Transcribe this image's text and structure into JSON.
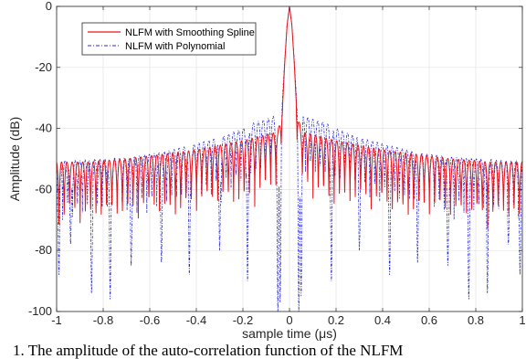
{
  "caption": "1.   The amplitude of the auto-correlation function of the NLFM",
  "chart_data": {
    "type": "line",
    "xlabel": "sample time (μs)",
    "ylabel": "Amplitude (dB)",
    "xlim": [
      -1,
      1
    ],
    "ylim": [
      -100,
      0
    ],
    "xticks": [
      -1,
      -0.8,
      -0.6,
      -0.4,
      -0.2,
      0,
      0.2,
      0.4,
      0.6,
      0.8,
      1
    ],
    "xtick_labels": [
      "-1",
      "-0.8",
      "-0.6",
      "-0.4",
      "-0.2",
      "0",
      "0.2",
      "0.4",
      "0.6",
      "0.8",
      "1"
    ],
    "yticks": [
      0,
      -20,
      -40,
      -60,
      -80,
      -100
    ],
    "ytick_labels": [
      "0",
      "-20",
      "-40",
      "-60",
      "-80",
      "-100"
    ],
    "grid": true,
    "legend_position": "top-left",
    "series": [
      {
        "name": "NLFM with Smoothing Spline",
        "color": "#e8141a",
        "style": "solid",
        "x": [
          -1.0,
          -0.95,
          -0.9,
          -0.85,
          -0.8,
          -0.7,
          -0.6,
          -0.5,
          -0.4,
          -0.3,
          -0.2,
          -0.15,
          -0.1,
          -0.07,
          -0.05,
          -0.03,
          -0.02,
          -0.01,
          0,
          0.01,
          0.02,
          0.03,
          0.05,
          0.07,
          0.1,
          0.15,
          0.2,
          0.3,
          0.4,
          0.5,
          0.6,
          0.7,
          0.8,
          0.85,
          0.9,
          0.95,
          1.0
        ],
        "envelope_db": [
          -51,
          -51,
          -51,
          -51,
          -50.5,
          -50,
          -49,
          -48,
          -47,
          -45.5,
          -44,
          -43,
          -42,
          -41.5,
          -41,
          -33,
          -18,
          -6,
          0,
          -6,
          -18,
          -33,
          -41,
          -41.5,
          -42,
          -43,
          -44,
          -45.5,
          -47,
          -48,
          -49,
          -50,
          -50.5,
          -51,
          -51,
          -51,
          -51
        ],
        "null_depth_db": [
          -78,
          -72,
          -73,
          -75,
          -72,
          -73,
          -70,
          -74,
          -69,
          -68,
          -70,
          -68,
          -65,
          -64,
          -62,
          -45,
          -30,
          -10,
          0,
          -10,
          -30,
          -45,
          -62,
          -64,
          -65,
          -68,
          -70,
          -68,
          -69,
          -74,
          -70,
          -73,
          -72,
          -75,
          -73,
          -72,
          -78
        ]
      },
      {
        "name": "NLFM with Polynomial",
        "color": "#2b2bd6",
        "style": "dash-dot",
        "x": [
          -1.0,
          -0.95,
          -0.9,
          -0.85,
          -0.8,
          -0.7,
          -0.6,
          -0.5,
          -0.4,
          -0.3,
          -0.2,
          -0.15,
          -0.1,
          -0.07,
          -0.05,
          -0.03,
          -0.02,
          -0.01,
          0,
          0.01,
          0.02,
          0.03,
          0.05,
          0.07,
          0.1,
          0.15,
          0.2,
          0.3,
          0.4,
          0.5,
          0.6,
          0.7,
          0.8,
          0.85,
          0.9,
          0.95,
          1.0
        ],
        "envelope_db": [
          -50.5,
          -50.5,
          -50.5,
          -50,
          -50,
          -49.5,
          -48.5,
          -47,
          -45,
          -43,
          -40,
          -38,
          -37,
          -36,
          -35.5,
          -30,
          -17,
          -5.5,
          0,
          -5.5,
          -17,
          -30,
          -35.5,
          -36,
          -37,
          -38,
          -40,
          -43,
          -45,
          -47,
          -48.5,
          -49.5,
          -50,
          -50,
          -50.5,
          -50.5,
          -50.5
        ],
        "deep_nulls": [
          {
            "x": -0.99,
            "y": -88
          },
          {
            "x": -0.94,
            "y": -78
          },
          {
            "x": -0.85,
            "y": -94
          },
          {
            "x": -0.77,
            "y": -96
          },
          {
            "x": -0.68,
            "y": -85
          },
          {
            "x": -0.55,
            "y": -84
          },
          {
            "x": -0.43,
            "y": -88
          },
          {
            "x": -0.3,
            "y": -80
          },
          {
            "x": -0.18,
            "y": -90
          },
          {
            "x": -0.05,
            "y": -100
          },
          {
            "x": -0.04,
            "y": -97
          },
          {
            "x": 0.04,
            "y": -100
          },
          {
            "x": 0.05,
            "y": -95
          },
          {
            "x": 0.18,
            "y": -90
          },
          {
            "x": 0.3,
            "y": -80
          },
          {
            "x": 0.43,
            "y": -88
          },
          {
            "x": 0.55,
            "y": -84
          },
          {
            "x": 0.68,
            "y": -85
          },
          {
            "x": 0.77,
            "y": -96
          },
          {
            "x": 0.85,
            "y": -94
          },
          {
            "x": 0.94,
            "y": -78
          },
          {
            "x": 0.99,
            "y": -88
          }
        ]
      }
    ]
  }
}
